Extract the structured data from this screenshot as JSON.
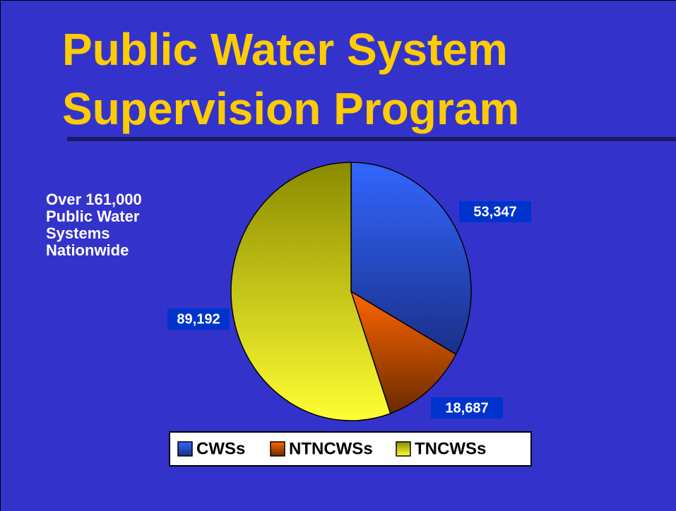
{
  "chart_data": {
    "type": "pie",
    "title": [
      "Public Water System",
      "Supervision Program"
    ],
    "annotation": [
      "Over 161,000",
      "Public Water",
      "Systems",
      "Nationwide"
    ],
    "categories": [
      "CWSs",
      "NTNCWSs",
      "TNCWSs"
    ],
    "values": [
      53347,
      18687,
      89192
    ],
    "value_labels": [
      "53,347",
      "18,687",
      "89,192"
    ],
    "colors": [
      "#3366ff",
      "#ff6600",
      "#ffff00"
    ],
    "legend": "bottom"
  }
}
